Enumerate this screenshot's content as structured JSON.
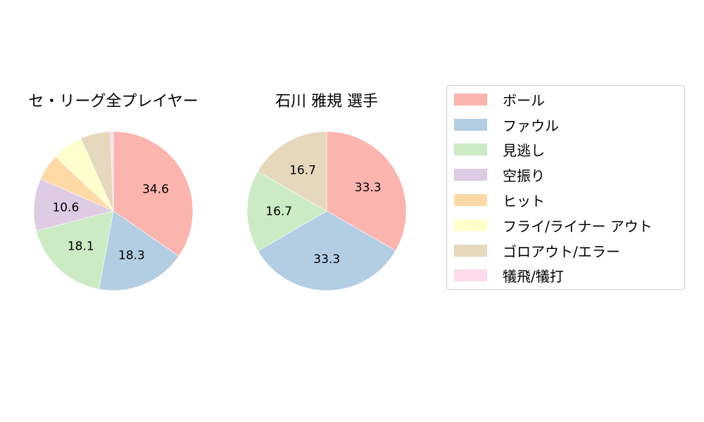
{
  "chart_data": [
    {
      "type": "pie",
      "title": "セ・リーグ全プレイヤー",
      "categories": [
        "ボール",
        "ファウル",
        "見逃し",
        "空振り",
        "ヒット",
        "フライ/ライナー アウト",
        "ゴロアウト/エラー",
        "犠飛/犠打"
      ],
      "values": [
        34.6,
        18.3,
        18.1,
        10.6,
        5.4,
        6.3,
        6.1,
        0.6
      ],
      "labels_shown": [
        "34.6",
        "18.3",
        "18.1",
        "10.6",
        "",
        "",
        "",
        ""
      ],
      "start_angle": 90,
      "direction": "clockwise"
    },
    {
      "type": "pie",
      "title": "石川 雅規  選手",
      "categories": [
        "ボール",
        "ファウル",
        "見逃し",
        "空振り",
        "ヒット",
        "フライ/ライナー アウト",
        "ゴロアウト/エラー",
        "犠飛/犠打"
      ],
      "values": [
        33.3,
        33.3,
        16.7,
        0,
        0,
        0,
        16.7,
        0
      ],
      "labels_shown": [
        "33.3",
        "33.3",
        "16.7",
        "",
        "",
        "",
        "16.7",
        ""
      ],
      "start_angle": 90,
      "direction": "clockwise"
    }
  ],
  "legend": {
    "position": "right",
    "items": [
      {
        "label": "ボール",
        "color": "#fbb4ae"
      },
      {
        "label": "ファウル",
        "color": "#b3cde3"
      },
      {
        "label": "見逃し",
        "color": "#ccebc5"
      },
      {
        "label": "空振り",
        "color": "#decbe4"
      },
      {
        "label": "ヒット",
        "color": "#fed9a6"
      },
      {
        "label": "フライ/ライナー アウト",
        "color": "#ffffcc"
      },
      {
        "label": "ゴロアウト/エラー",
        "color": "#e5d8bd"
      },
      {
        "label": "犠飛/犠打",
        "color": "#fddaec"
      }
    ]
  }
}
